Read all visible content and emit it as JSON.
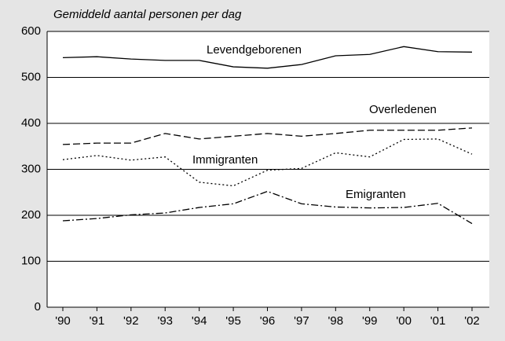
{
  "chart_data": {
    "type": "line",
    "title": "Gemiddeld aantal personen per dag",
    "categories": [
      "'90",
      "'91",
      "'92",
      "'93",
      "'94",
      "'95",
      "'96",
      "'97",
      "'98",
      "'99",
      "'00",
      "'01",
      "'02"
    ],
    "series": [
      {
        "name": "Levendgeborenen",
        "color": "#000000",
        "dash": "solid",
        "values": [
          543,
          545,
          540,
          537,
          537,
          523,
          520,
          528,
          547,
          550,
          567,
          556,
          555
        ]
      },
      {
        "name": "Overledenen",
        "color": "#000000",
        "dash": "dashed",
        "values": [
          354,
          357,
          357,
          378,
          366,
          372,
          378,
          372,
          378,
          385,
          385,
          385,
          390
        ]
      },
      {
        "name": "Immigranten",
        "color": "#000000",
        "dash": "dotted",
        "values": [
          321,
          330,
          320,
          327,
          272,
          264,
          298,
          302,
          336,
          327,
          365,
          366,
          333
        ]
      },
      {
        "name": "Emigranten",
        "color": "#000000",
        "dash": "dashdot",
        "values": [
          188,
          193,
          201,
          205,
          217,
          225,
          252,
          225,
          218,
          216,
          217,
          226,
          182
        ]
      }
    ],
    "ylim": [
      0,
      600
    ],
    "yticks": [
      0,
      100,
      200,
      300,
      400,
      500,
      600
    ],
    "grid": true
  }
}
